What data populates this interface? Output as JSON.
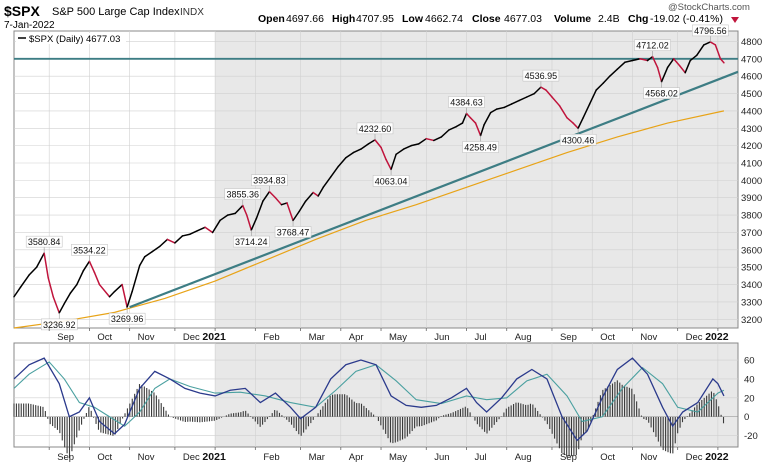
{
  "header": {
    "symbol": "$SPX",
    "name": "S&P 500 Large Cap Index",
    "exchange": "INDX",
    "date": "7-Jan-2022",
    "open_label": "Open",
    "open": "4697.66",
    "high_label": "High",
    "high": "4707.95",
    "low_label": "Low",
    "low": "4662.74",
    "close_label": "Close",
    "close": "4677.03",
    "volume_label": "Volume",
    "volume": "2.4B",
    "chg_label": "Chg",
    "chg": "-19.02 (-0.41%)",
    "watermark": "@StockCharts.com"
  },
  "legend": {
    "text": "$SPX (Daily) 4677.03"
  },
  "colors": {
    "up": "#000000",
    "down": "#c0143c",
    "ma": "#e8a317",
    "trend": "#3d7d84",
    "hline": "#3d7d84",
    "macd": "#2b3a8c",
    "signal": "#4aa0a0",
    "hist": "#3a3a3a",
    "shade": "#e8e8e8"
  },
  "chart_data": [
    {
      "type": "line",
      "y_axis": {
        "ylim": [
          3150,
          4860
        ],
        "ticks": [
          3200,
          3300,
          3400,
          3500,
          3600,
          3700,
          3800,
          3900,
          4000,
          4100,
          4200,
          4300,
          4400,
          4500,
          4600,
          4700,
          4800
        ]
      },
      "x_axis": {
        "months": [
          "Sep",
          "Oct",
          "Nov",
          "Dec",
          "2021",
          "Feb",
          "Mar",
          "Apr",
          "May",
          "Jun",
          "Jul",
          "Aug",
          "Sep",
          "Oct",
          "Nov",
          "Dec",
          "2022"
        ],
        "month_x": [
          2020.67,
          2020.75,
          2020.83,
          2020.92,
          2021.0,
          2021.08,
          2021.17,
          2021.25,
          2021.33,
          2021.42,
          2021.5,
          2021.58,
          2021.67,
          2021.75,
          2021.83,
          2021.92,
          2022.0
        ],
        "xlim": [
          2020.6,
          2022.04
        ]
      },
      "series": [
        {
          "kind": "price",
          "points": [
            [
              2020.6,
              3330
            ],
            [
              2020.613,
              3385
            ],
            [
              2020.63,
              3455
            ],
            [
              2020.645,
              3500
            ],
            [
              2020.66,
              3581
            ],
            [
              2020.668,
              3440
            ],
            [
              2020.678,
              3330
            ],
            [
              2020.69,
              3237
            ],
            [
              2020.7,
              3290
            ],
            [
              2020.712,
              3350
            ],
            [
              2020.725,
              3400
            ],
            [
              2020.738,
              3480
            ],
            [
              2020.75,
              3534
            ],
            [
              2020.76,
              3470
            ],
            [
              2020.77,
              3400
            ],
            [
              2020.79,
              3330
            ],
            [
              2020.8,
              3360
            ],
            [
              2020.815,
              3400
            ],
            [
              2020.825,
              3270
            ],
            [
              2020.835,
              3360
            ],
            [
              2020.85,
              3510
            ],
            [
              2020.86,
              3560
            ],
            [
              2020.875,
              3590
            ],
            [
              2020.89,
              3620
            ],
            [
              2020.905,
              3660
            ],
            [
              2020.92,
              3640
            ],
            [
              2020.935,
              3680
            ],
            [
              2020.95,
              3690
            ],
            [
              2020.965,
              3710
            ],
            [
              2020.98,
              3730
            ],
            [
              2020.995,
              3700
            ],
            [
              2021.01,
              3770
            ],
            [
              2021.025,
              3800
            ],
            [
              2021.04,
              3810
            ],
            [
              2021.055,
              3855
            ],
            [
              2021.063,
              3800
            ],
            [
              2021.072,
              3714
            ],
            [
              2021.082,
              3780
            ],
            [
              2021.095,
              3880
            ],
            [
              2021.108,
              3935
            ],
            [
              2021.12,
              3900
            ],
            [
              2021.132,
              3860
            ],
            [
              2021.143,
              3870
            ],
            [
              2021.155,
              3769
            ],
            [
              2021.167,
              3820
            ],
            [
              2021.18,
              3880
            ],
            [
              2021.195,
              3930
            ],
            [
              2021.205,
              3910
            ],
            [
              2021.215,
              3960
            ],
            [
              2021.23,
              4020
            ],
            [
              2021.245,
              4080
            ],
            [
              2021.26,
              4130
            ],
            [
              2021.275,
              4160
            ],
            [
              2021.29,
              4180
            ],
            [
              2021.305,
              4210
            ],
            [
              2021.318,
              4233
            ],
            [
              2021.33,
              4190
            ],
            [
              2021.34,
              4120
            ],
            [
              2021.35,
              4063
            ],
            [
              2021.36,
              4150
            ],
            [
              2021.375,
              4180
            ],
            [
              2021.39,
              4200
            ],
            [
              2021.405,
              4210
            ],
            [
              2021.42,
              4240
            ],
            [
              2021.435,
              4230
            ],
            [
              2021.45,
              4250
            ],
            [
              2021.465,
              4290
            ],
            [
              2021.48,
              4310
            ],
            [
              2021.492,
              4330
            ],
            [
              2021.5,
              4385
            ],
            [
              2021.508,
              4360
            ],
            [
              2021.518,
              4330
            ],
            [
              2021.528,
              4258
            ],
            [
              2021.535,
              4320
            ],
            [
              2021.548,
              4390
            ],
            [
              2021.56,
              4410
            ],
            [
              2021.575,
              4420
            ],
            [
              2021.59,
              4440
            ],
            [
              2021.605,
              4460
            ],
            [
              2021.62,
              4480
            ],
            [
              2021.635,
              4500
            ],
            [
              2021.648,
              4537
            ],
            [
              2021.658,
              4520
            ],
            [
              2021.67,
              4480
            ],
            [
              2021.685,
              4430
            ],
            [
              2021.7,
              4360
            ],
            [
              2021.712,
              4330
            ],
            [
              2021.722,
              4300
            ],
            [
              2021.732,
              4360
            ],
            [
              2021.745,
              4440
            ],
            [
              2021.758,
              4520
            ],
            [
              2021.772,
              4560
            ],
            [
              2021.785,
              4600
            ],
            [
              2021.8,
              4640
            ],
            [
              2021.815,
              4680
            ],
            [
              2021.83,
              4690
            ],
            [
              2021.845,
              4700
            ],
            [
              2021.86,
              4690
            ],
            [
              2021.87,
              4712
            ],
            [
              2021.88,
              4650
            ],
            [
              2021.888,
              4568
            ],
            [
              2021.9,
              4650
            ],
            [
              2021.912,
              4700
            ],
            [
              2021.924,
              4660
            ],
            [
              2021.935,
              4620
            ],
            [
              2021.945,
              4690
            ],
            [
              2021.958,
              4720
            ],
            [
              2021.972,
              4780
            ],
            [
              2021.985,
              4797
            ],
            [
              2021.995,
              4780
            ],
            [
              2022.005,
              4700
            ],
            [
              2022.012,
              4677
            ]
          ]
        },
        {
          "kind": "moving-average",
          "points": [
            [
              2020.6,
              3150
            ],
            [
              2020.7,
              3190
            ],
            [
              2020.8,
              3240
            ],
            [
              2020.9,
              3320
            ],
            [
              2021.0,
              3420
            ],
            [
              2021.1,
              3540
            ],
            [
              2021.2,
              3660
            ],
            [
              2021.3,
              3770
            ],
            [
              2021.4,
              3860
            ],
            [
              2021.5,
              3960
            ],
            [
              2021.6,
              4060
            ],
            [
              2021.7,
              4160
            ],
            [
              2021.8,
              4250
            ],
            [
              2021.9,
              4330
            ],
            [
              2022.012,
              4400
            ]
          ]
        },
        {
          "kind": "trendline",
          "points": [
            [
              2020.83,
              3270
            ],
            [
              2022.04,
              4625
            ]
          ]
        },
        {
          "kind": "horizontal-line",
          "value": 4700
        }
      ],
      "annotations": [
        {
          "label": "3580.84",
          "x": 2020.66,
          "y": 3581
        },
        {
          "label": "3534.22",
          "x": 2020.75,
          "y": 3534
        },
        {
          "label": "3236.92",
          "x": 2020.69,
          "y": 3237
        },
        {
          "label": "3269.96",
          "x": 2020.825,
          "y": 3270
        },
        {
          "label": "3855.36",
          "x": 2021.055,
          "y": 3855
        },
        {
          "label": "3934.83",
          "x": 2021.108,
          "y": 3935
        },
        {
          "label": "3714.24",
          "x": 2021.072,
          "y": 3714
        },
        {
          "label": "3768.47",
          "x": 2021.155,
          "y": 3769
        },
        {
          "label": "4232.60",
          "x": 2021.318,
          "y": 4233
        },
        {
          "label": "4063.04",
          "x": 2021.35,
          "y": 4063
        },
        {
          "label": "4384.63",
          "x": 2021.5,
          "y": 4385
        },
        {
          "label": "4258.49",
          "x": 2021.528,
          "y": 4258
        },
        {
          "label": "4536.95",
          "x": 2021.648,
          "y": 4537
        },
        {
          "label": "4300.46",
          "x": 2021.722,
          "y": 4300
        },
        {
          "label": "4712.02",
          "x": 2021.87,
          "y": 4712
        },
        {
          "label": "4568.02",
          "x": 2021.888,
          "y": 4568
        },
        {
          "label": "4796.56",
          "x": 2021.985,
          "y": 4797
        }
      ]
    },
    {
      "type": "line",
      "y_axis": {
        "ylim": [
          -32,
          78
        ],
        "ticks": [
          60,
          40,
          20,
          0,
          -20
        ]
      },
      "series": [
        {
          "kind": "macd",
          "points": [
            [
              2020.6,
              40
            ],
            [
              2020.63,
              55
            ],
            [
              2020.66,
              62
            ],
            [
              2020.69,
              35
            ],
            [
              2020.71,
              0
            ],
            [
              2020.73,
              5
            ],
            [
              2020.75,
              20
            ],
            [
              2020.77,
              -5
            ],
            [
              2020.8,
              -18
            ],
            [
              2020.82,
              -8
            ],
            [
              2020.85,
              30
            ],
            [
              2020.88,
              48
            ],
            [
              2020.91,
              40
            ],
            [
              2020.94,
              30
            ],
            [
              2020.97,
              25
            ],
            [
              2021.0,
              22
            ],
            [
              2021.03,
              28
            ],
            [
              2021.06,
              30
            ],
            [
              2021.09,
              15
            ],
            [
              2021.12,
              25
            ],
            [
              2021.15,
              10
            ],
            [
              2021.17,
              -2
            ],
            [
              2021.2,
              10
            ],
            [
              2021.23,
              40
            ],
            [
              2021.26,
              55
            ],
            [
              2021.29,
              60
            ],
            [
              2021.32,
              55
            ],
            [
              2021.35,
              22
            ],
            [
              2021.38,
              12
            ],
            [
              2021.41,
              10
            ],
            [
              2021.44,
              12
            ],
            [
              2021.47,
              20
            ],
            [
              2021.5,
              30
            ],
            [
              2021.52,
              15
            ],
            [
              2021.54,
              5
            ],
            [
              2021.57,
              20
            ],
            [
              2021.6,
              40
            ],
            [
              2021.63,
              50
            ],
            [
              2021.66,
              40
            ],
            [
              2021.69,
              0
            ],
            [
              2021.72,
              -25
            ],
            [
              2021.74,
              -15
            ],
            [
              2021.77,
              20
            ],
            [
              2021.8,
              50
            ],
            [
              2021.83,
              62
            ],
            [
              2021.86,
              45
            ],
            [
              2021.89,
              10
            ],
            [
              2021.91,
              -10
            ],
            [
              2021.93,
              5
            ],
            [
              2021.96,
              15
            ],
            [
              2021.99,
              40
            ],
            [
              2022.0,
              35
            ],
            [
              2022.012,
              22
            ]
          ]
        },
        {
          "kind": "signal",
          "points": [
            [
              2020.6,
              30
            ],
            [
              2020.63,
              45
            ],
            [
              2020.67,
              58
            ],
            [
              2020.7,
              40
            ],
            [
              2020.73,
              15
            ],
            [
              2020.76,
              10
            ],
            [
              2020.79,
              0
            ],
            [
              2020.82,
              -10
            ],
            [
              2020.85,
              5
            ],
            [
              2020.88,
              30
            ],
            [
              2020.91,
              40
            ],
            [
              2020.95,
              32
            ],
            [
              2021.0,
              25
            ],
            [
              2021.05,
              26
            ],
            [
              2021.1,
              22
            ],
            [
              2021.15,
              15
            ],
            [
              2021.2,
              10
            ],
            [
              2021.24,
              28
            ],
            [
              2021.28,
              48
            ],
            [
              2021.32,
              55
            ],
            [
              2021.36,
              38
            ],
            [
              2021.4,
              18
            ],
            [
              2021.45,
              14
            ],
            [
              2021.5,
              22
            ],
            [
              2021.54,
              18
            ],
            [
              2021.58,
              20
            ],
            [
              2021.62,
              38
            ],
            [
              2021.66,
              45
            ],
            [
              2021.7,
              22
            ],
            [
              2021.73,
              -5
            ],
            [
              2021.77,
              0
            ],
            [
              2021.81,
              30
            ],
            [
              2021.85,
              52
            ],
            [
              2021.89,
              35
            ],
            [
              2021.92,
              10
            ],
            [
              2021.96,
              5
            ],
            [
              2022.0,
              25
            ],
            [
              2022.012,
              28
            ]
          ]
        }
      ]
    }
  ]
}
